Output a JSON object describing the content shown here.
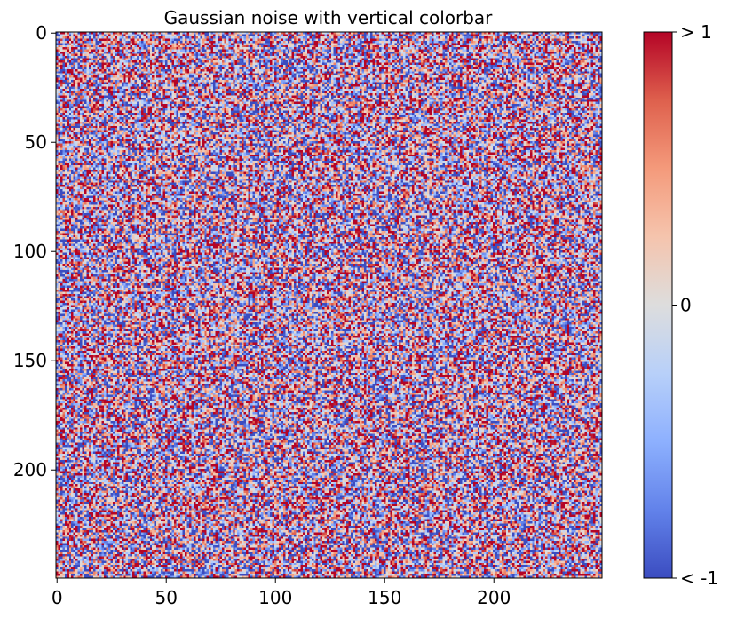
{
  "chart_data": {
    "type": "heatmap",
    "title": "Gaussian noise with vertical colorbar",
    "xlabel": "",
    "ylabel": "",
    "grid": false,
    "description_of_values": "",
    "data_shape": [
      250,
      250
    ],
    "distribution": {
      "kind": "gaussian",
      "mean": 0,
      "std": 1,
      "seed": 19680801
    },
    "x_axis": {
      "range": [
        -0.5,
        249.5
      ],
      "ticks": [
        0,
        50,
        100,
        150,
        200
      ],
      "tick_labels": [
        "0",
        "50",
        "100",
        "150",
        "200"
      ]
    },
    "y_axis": {
      "range": [
        -0.5,
        249.5
      ],
      "inverted": true,
      "ticks": [
        0,
        50,
        100,
        150,
        200
      ],
      "tick_labels": [
        "0",
        "50",
        "100",
        "150",
        "200"
      ]
    },
    "colorbar": {
      "orientation": "vertical",
      "placement": "right",
      "colormap": "coolwarm",
      "vmin": -1,
      "vmax": 1,
      "ticks": [
        -1,
        0,
        1
      ],
      "tick_labels": [
        "< -1",
        "0",
        "> 1"
      ],
      "low_color": "#3b4cc0",
      "mid_color": "#dddddd",
      "high_color": "#b40426"
    }
  }
}
